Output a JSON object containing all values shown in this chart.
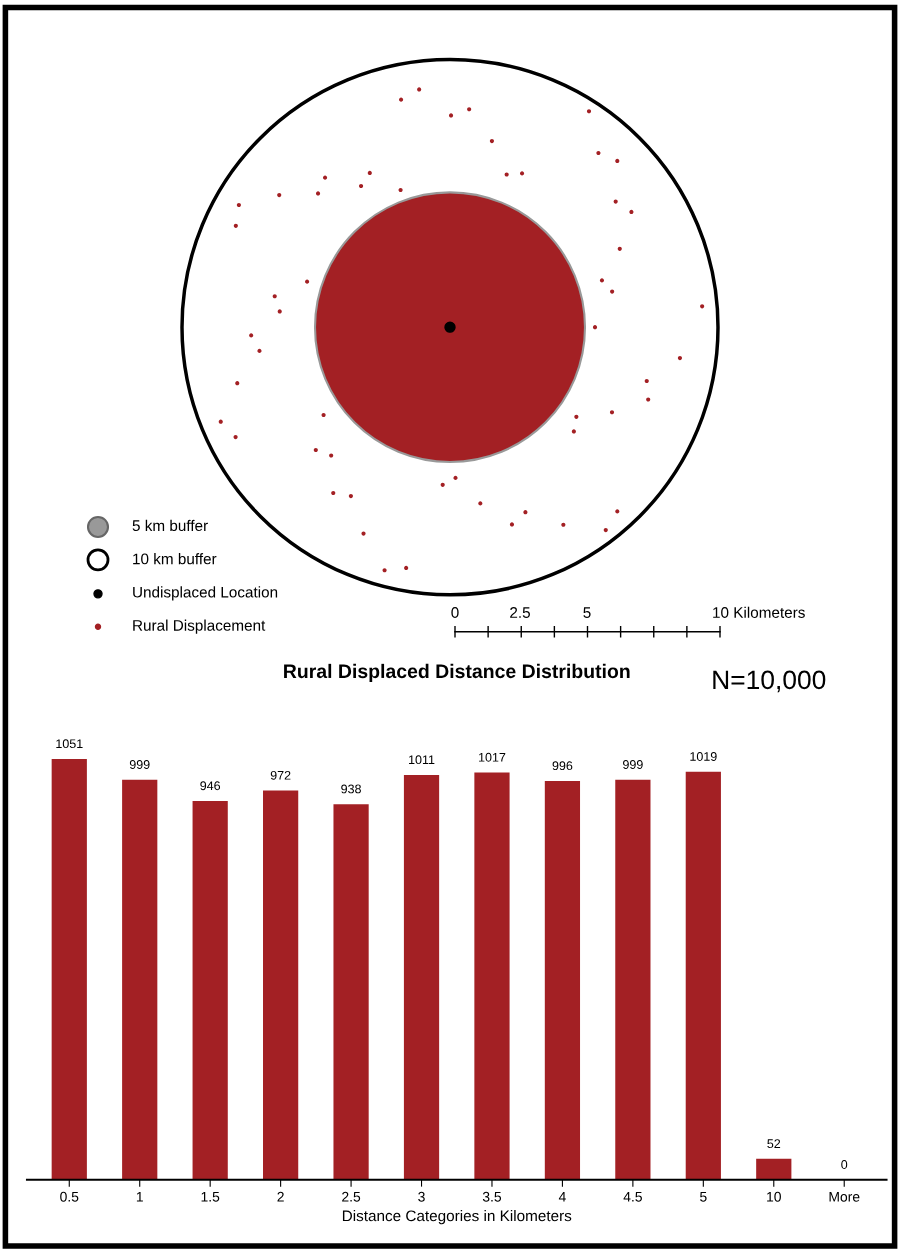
{
  "chart_data": [
    {
      "type": "other",
      "annotations": [
        "5 km buffer",
        "10 km buffer",
        "Undisplaced Location",
        "Rural Displacement",
        "0",
        "2.5",
        "5",
        "10 Kilometers"
      ]
    },
    {
      "type": "bar",
      "title": "Rural Displaced Distance Distribution",
      "xlabel": "Distance Categories in Kilometers",
      "annotations": [
        "N=10,000"
      ],
      "categories": [
        "0.5",
        "1",
        "1.5",
        "2",
        "2.5",
        "3",
        "3.5",
        "4",
        "4.5",
        "5",
        "10",
        "More"
      ],
      "values": [
        1051,
        999,
        946,
        972,
        938,
        1011,
        1017,
        996,
        999,
        1019,
        52,
        0
      ],
      "color": "#a32024",
      "data_labels": true,
      "tick_labels": "x"
    }
  ]
}
